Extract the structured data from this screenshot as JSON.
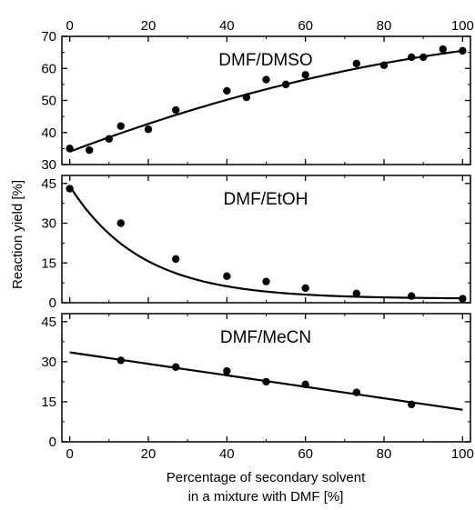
{
  "chart_data": {
    "type": "scatter",
    "x_axis": {
      "label_line1": "Percentage of secondary solvent",
      "label_line2": "in a mixture with DMF [%]",
      "range": [
        -2,
        102
      ],
      "ticks": [
        "0",
        "20",
        "40",
        "60",
        "80",
        "100"
      ],
      "tick_values": [
        0,
        20,
        40,
        60,
        80,
        100
      ],
      "top_axis_labels": true
    },
    "y_axis": {
      "label": "Reaction yield [%]"
    },
    "panels": [
      {
        "label": "DMF/DMSO",
        "ylim": [
          30,
          70
        ],
        "yticks": [
          "30",
          "40",
          "50",
          "60",
          "70"
        ],
        "ytick_values": [
          30,
          40,
          50,
          60,
          70
        ],
        "points": [
          [
            0,
            35
          ],
          [
            5,
            34.5
          ],
          [
            10,
            38
          ],
          [
            13,
            42
          ],
          [
            20,
            41
          ],
          [
            27,
            47
          ],
          [
            40,
            53
          ],
          [
            45,
            51
          ],
          [
            50,
            56.5
          ],
          [
            55,
            55
          ],
          [
            60,
            58
          ],
          [
            73,
            61.5
          ],
          [
            80,
            61
          ],
          [
            87,
            63.5
          ],
          [
            90,
            63.5
          ],
          [
            95,
            66
          ],
          [
            100,
            65.5
          ]
        ],
        "fit": {
          "model": "quadratic",
          "coef": [
            34,
            0.465,
            -0.0015
          ]
        }
      },
      {
        "label": "DMF/EtOH",
        "ylim": [
          0,
          48
        ],
        "yticks": [
          "0",
          "15",
          "30",
          "45"
        ],
        "ytick_values": [
          0,
          15,
          30,
          45
        ],
        "points": [
          [
            0,
            43
          ],
          [
            13,
            30
          ],
          [
            27,
            16.5
          ],
          [
            40,
            10
          ],
          [
            50,
            8
          ],
          [
            60,
            5.5
          ],
          [
            73,
            3.5
          ],
          [
            87,
            2.5
          ],
          [
            100,
            1.5
          ]
        ],
        "fit": {
          "model": "exponential",
          "coef": [
            1.5,
            42.5,
            0.055
          ]
        }
      },
      {
        "label": "DMF/MeCN",
        "ylim": [
          0,
          48
        ],
        "yticks": [
          "0",
          "15",
          "30",
          "45"
        ],
        "ytick_values": [
          0,
          15,
          30,
          45
        ],
        "points": [
          [
            13,
            30.5
          ],
          [
            27,
            28
          ],
          [
            40,
            26.5
          ],
          [
            50,
            22.5
          ],
          [
            60,
            21.5
          ],
          [
            73,
            18.5
          ],
          [
            87,
            14
          ]
        ],
        "fit": {
          "model": "linear",
          "coef": [
            33.5,
            -0.215
          ]
        }
      }
    ]
  }
}
